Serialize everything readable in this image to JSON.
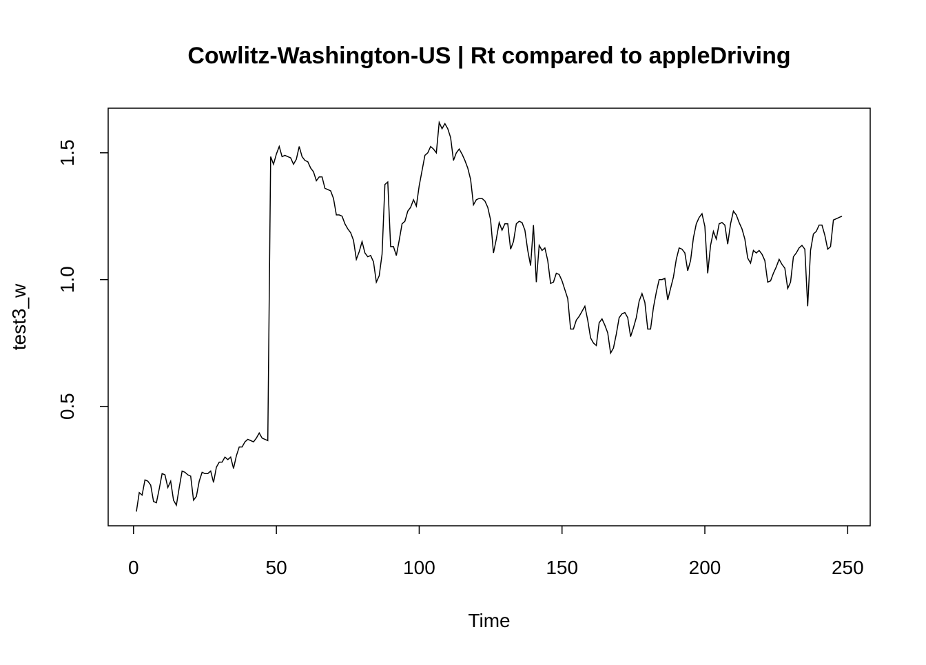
{
  "chart_data": {
    "type": "line",
    "title": "Cowlitz-Washington-US | Rt compared to appleDriving",
    "x_label": "Time",
    "y_label": "test3_w",
    "color": "#000000",
    "xlim": [
      -8.88,
      257.88
    ],
    "ylim": [
      0.029,
      1.676
    ],
    "xticks": [
      0,
      50,
      100,
      150,
      200,
      250
    ],
    "yticks": [
      0.5,
      {
        "value": 1,
        "label": "1.0"
      },
      1.5
    ],
    "x": [
      1,
      2,
      3,
      4,
      5,
      6,
      7,
      8,
      9,
      10,
      11,
      12,
      13,
      14,
      15,
      16,
      17,
      18,
      19,
      20,
      21,
      22,
      23,
      24,
      25,
      26,
      27,
      28,
      29,
      30,
      31,
      32,
      33,
      34,
      35,
      36,
      37,
      38,
      39,
      40,
      41,
      42,
      43,
      44,
      45,
      46,
      47,
      48,
      49,
      50,
      51,
      52,
      53,
      54,
      55,
      56,
      57,
      58,
      59,
      60,
      61,
      62,
      63,
      64,
      65,
      66,
      67,
      68,
      69,
      70,
      71,
      72,
      73,
      74,
      75,
      76,
      77,
      78,
      79,
      80,
      81,
      82,
      83,
      84,
      85,
      86,
      87,
      88,
      89,
      90,
      91,
      92,
      93,
      94,
      95,
      96,
      97,
      98,
      99,
      100,
      101,
      102,
      103,
      104,
      105,
      106,
      107,
      108,
      109,
      110,
      111,
      112,
      113,
      114,
      115,
      116,
      117,
      118,
      119,
      120,
      121,
      122,
      123,
      124,
      125,
      126,
      127,
      128,
      129,
      130,
      131,
      132,
      133,
      134,
      135,
      136,
      137,
      138,
      139,
      140,
      141,
      142,
      143,
      144,
      145,
      146,
      147,
      148,
      149,
      150,
      151,
      152,
      153,
      154,
      155,
      156,
      157,
      158,
      159,
      160,
      161,
      162,
      163,
      164,
      165,
      166,
      167,
      168,
      169,
      170,
      171,
      172,
      173,
      174,
      175,
      176,
      177,
      178,
      179,
      180,
      181,
      182,
      183,
      184,
      185,
      186,
      187,
      188,
      189,
      190,
      191,
      192,
      193,
      194,
      195,
      196,
      197,
      198,
      199,
      200,
      201,
      202,
      203,
      204,
      205,
      206,
      207,
      208,
      209,
      210,
      211,
      212,
      213,
      214,
      215,
      216,
      217,
      218,
      219,
      220,
      221,
      222,
      223,
      224,
      225,
      226,
      227,
      228,
      229,
      230,
      231,
      232,
      233,
      234,
      235,
      236,
      237,
      238,
      239,
      240,
      241,
      242,
      243,
      244,
      245,
      246,
      247,
      248
    ],
    "values": [
      0.085,
      0.16,
      0.15,
      0.21,
      0.205,
      0.19,
      0.125,
      0.12,
      0.175,
      0.235,
      0.23,
      0.18,
      0.205,
      0.13,
      0.11,
      0.18,
      0.245,
      0.24,
      0.23,
      0.225,
      0.13,
      0.145,
      0.205,
      0.24,
      0.235,
      0.235,
      0.245,
      0.2,
      0.26,
      0.28,
      0.28,
      0.3,
      0.29,
      0.3,
      0.255,
      0.305,
      0.34,
      0.34,
      0.36,
      0.37,
      0.365,
      0.36,
      0.375,
      0.395,
      0.375,
      0.37,
      0.365,
      1.485,
      1.455,
      1.495,
      1.525,
      1.485,
      1.49,
      1.485,
      1.48,
      1.455,
      1.475,
      1.525,
      1.485,
      1.47,
      1.465,
      1.44,
      1.425,
      1.39,
      1.405,
      1.405,
      1.36,
      1.355,
      1.35,
      1.32,
      1.255,
      1.255,
      1.25,
      1.22,
      1.2,
      1.185,
      1.155,
      1.08,
      1.11,
      1.15,
      1.105,
      1.09,
      1.095,
      1.07,
      0.99,
      1.015,
      1.1,
      1.375,
      1.385,
      1.13,
      1.13,
      1.095,
      1.155,
      1.22,
      1.23,
      1.27,
      1.285,
      1.315,
      1.29,
      1.37,
      1.43,
      1.49,
      1.5,
      1.525,
      1.515,
      1.5,
      1.62,
      1.595,
      1.615,
      1.595,
      1.56,
      1.47,
      1.5,
      1.515,
      1.495,
      1.47,
      1.44,
      1.395,
      1.295,
      1.315,
      1.32,
      1.32,
      1.31,
      1.285,
      1.235,
      1.105,
      1.16,
      1.225,
      1.195,
      1.22,
      1.22,
      1.12,
      1.15,
      1.22,
      1.23,
      1.225,
      1.195,
      1.115,
      1.055,
      1.215,
      0.99,
      1.135,
      1.115,
      1.125,
      1.075,
      0.985,
      0.99,
      1.025,
      1.02,
      0.995,
      0.96,
      0.925,
      0.805,
      0.805,
      0.84,
      0.855,
      0.875,
      0.895,
      0.84,
      0.77,
      0.75,
      0.74,
      0.83,
      0.845,
      0.82,
      0.79,
      0.71,
      0.73,
      0.785,
      0.85,
      0.865,
      0.87,
      0.85,
      0.775,
      0.81,
      0.85,
      0.915,
      0.945,
      0.91,
      0.805,
      0.805,
      0.89,
      0.95,
      1.0,
      1.0,
      1.005,
      0.92,
      0.965,
      1.01,
      1.08,
      1.125,
      1.12,
      1.105,
      1.035,
      1.075,
      1.165,
      1.22,
      1.245,
      1.26,
      1.21,
      1.025,
      1.135,
      1.19,
      1.16,
      1.22,
      1.225,
      1.215,
      1.14,
      1.22,
      1.27,
      1.255,
      1.225,
      1.2,
      1.16,
      1.085,
      1.065,
      1.115,
      1.105,
      1.115,
      1.1,
      1.075,
      0.99,
      0.995,
      1.025,
      1.05,
      1.08,
      1.06,
      1.045,
      0.965,
      0.99,
      1.09,
      1.105,
      1.125,
      1.135,
      1.12,
      0.895,
      1.115,
      1.18,
      1.19,
      1.215,
      1.215,
      1.175,
      1.12,
      1.13,
      1.235,
      1.24,
      1.245,
      1.25
    ]
  }
}
